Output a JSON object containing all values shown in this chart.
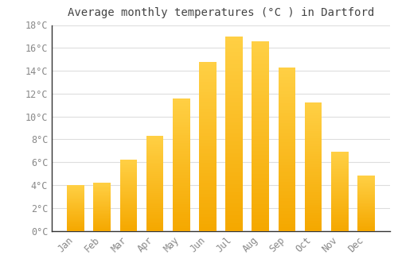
{
  "title": "Average monthly temperatures (°C ) in Dartford",
  "months": [
    "Jan",
    "Feb",
    "Mar",
    "Apr",
    "May",
    "Jun",
    "Jul",
    "Aug",
    "Sep",
    "Oct",
    "Nov",
    "Dec"
  ],
  "temperatures": [
    4.0,
    4.2,
    6.2,
    8.3,
    11.6,
    14.8,
    17.0,
    16.6,
    14.3,
    11.2,
    6.9,
    4.8
  ],
  "bar_color_top": "#FFD045",
  "bar_color_bottom": "#F5A800",
  "background_color": "#FFFFFF",
  "grid_color": "#DDDDDD",
  "text_color": "#888888",
  "spine_color": "#333333",
  "ylim": [
    0,
    18
  ],
  "yticks": [
    0,
    2,
    4,
    6,
    8,
    10,
    12,
    14,
    16,
    18
  ],
  "title_fontsize": 10,
  "tick_fontsize": 8.5,
  "bar_width": 0.65
}
